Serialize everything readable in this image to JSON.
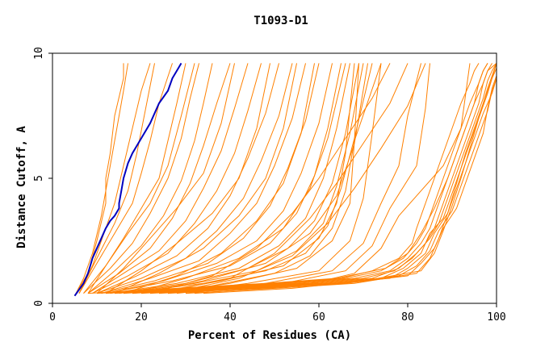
{
  "chart_data": {
    "type": "line",
    "title": "T1093-D1",
    "xlabel": "Percent of Residues (CA)",
    "ylabel": "Distance Cutoff, A",
    "xlim": [
      0,
      100
    ],
    "ylim": [
      0,
      10
    ],
    "xticks": [
      "0",
      "20",
      "40",
      "60",
      "80",
      "100"
    ],
    "yticks": [
      "0",
      "5",
      "10"
    ],
    "grid": false,
    "legend": "none",
    "colors": {
      "models": "#ff8000",
      "highlight": "#0000c0",
      "axes": "#000000"
    },
    "highlight_series": {
      "x": [
        5,
        7,
        8,
        8.5,
        9,
        10,
        11,
        12,
        13,
        14,
        15,
        15,
        15.5,
        16,
        17,
        18,
        20,
        22,
        23,
        24,
        26,
        27,
        28,
        29
      ],
      "y": [
        0.3,
        0.8,
        1.2,
        1.5,
        1.8,
        2.2,
        2.6,
        3.0,
        3.3,
        3.5,
        3.8,
        4.0,
        4.5,
        5.0,
        5.6,
        6.0,
        6.6,
        7.2,
        7.6,
        8.0,
        8.5,
        9.0,
        9.3,
        9.6
      ]
    },
    "series": [
      {
        "x": [
          5,
          8,
          10,
          12,
          12,
          13,
          14,
          16,
          16
        ],
        "y": [
          0.3,
          1.2,
          2.5,
          4.0,
          5.0,
          6.0,
          7.5,
          9.0,
          9.6
        ]
      },
      {
        "x": [
          5,
          7,
          9,
          11,
          12,
          14,
          16,
          17
        ],
        "y": [
          0.3,
          1.0,
          2.0,
          3.5,
          4.5,
          6.5,
          8.5,
          9.6
        ]
      },
      {
        "x": [
          6,
          9,
          12,
          14,
          16,
          18,
          20,
          22
        ],
        "y": [
          0.4,
          1.5,
          3.0,
          4.0,
          5.5,
          7.0,
          8.5,
          9.6
        ]
      },
      {
        "x": [
          6,
          10,
          14,
          18,
          20,
          22,
          24,
          27
        ],
        "y": [
          0.4,
          1.6,
          2.8,
          4.0,
          5.2,
          6.5,
          8.0,
          9.6
        ]
      },
      {
        "x": [
          7,
          12,
          16,
          20,
          24,
          26,
          28,
          30
        ],
        "y": [
          0.4,
          1.5,
          2.6,
          3.8,
          5.0,
          6.5,
          8.0,
          9.6
        ]
      },
      {
        "x": [
          7,
          13,
          18,
          22,
          26,
          29,
          31,
          33
        ],
        "y": [
          0.4,
          1.4,
          2.4,
          3.6,
          5.0,
          6.6,
          8.2,
          9.6
        ]
      },
      {
        "x": [
          8,
          14,
          20,
          25,
          29,
          32,
          34,
          36
        ],
        "y": [
          0.4,
          1.3,
          2.3,
          3.5,
          4.9,
          6.5,
          8.0,
          9.6
        ]
      },
      {
        "x": [
          8,
          15,
          22,
          27,
          31,
          34,
          37,
          40
        ],
        "y": [
          0.4,
          1.2,
          2.2,
          3.4,
          4.8,
          6.3,
          8.0,
          9.6
        ]
      },
      {
        "x": [
          9,
          16,
          24,
          30,
          34,
          38,
          41,
          44
        ],
        "y": [
          0.4,
          1.2,
          2.1,
          3.3,
          4.6,
          6.1,
          7.8,
          9.6
        ]
      },
      {
        "x": [
          9,
          17,
          26,
          32,
          37,
          41,
          44,
          47
        ],
        "y": [
          0.4,
          1.1,
          2.0,
          3.2,
          4.5,
          6.0,
          7.7,
          9.6
        ]
      },
      {
        "x": [
          10,
          19,
          28,
          35,
          40,
          44,
          48,
          51
        ],
        "y": [
          0.4,
          1.1,
          1.9,
          3.0,
          4.3,
          5.8,
          7.6,
          9.6
        ]
      },
      {
        "x": [
          10,
          20,
          30,
          37,
          43,
          47,
          51,
          54
        ],
        "y": [
          0.4,
          1.0,
          1.8,
          2.9,
          4.2,
          5.7,
          7.5,
          9.6
        ]
      },
      {
        "x": [
          11,
          22,
          33,
          40,
          46,
          50,
          54,
          57
        ],
        "y": [
          0.4,
          1.0,
          1.7,
          2.8,
          4.0,
          5.5,
          7.4,
          9.6
        ]
      },
      {
        "x": [
          11,
          23,
          35,
          43,
          49,
          53,
          57,
          60
        ],
        "y": [
          0.4,
          0.9,
          1.6,
          2.6,
          3.9,
          5.4,
          7.3,
          9.6
        ]
      },
      {
        "x": [
          12,
          25,
          37,
          46,
          52,
          56,
          60,
          63
        ],
        "y": [
          0.4,
          0.9,
          1.6,
          2.5,
          3.7,
          5.2,
          7.2,
          9.6
        ]
      },
      {
        "x": [
          12,
          27,
          40,
          49,
          55,
          59,
          62,
          65
        ],
        "y": [
          0.4,
          0.9,
          1.5,
          2.4,
          3.6,
          5.1,
          7.0,
          9.6
        ]
      },
      {
        "x": [
          13,
          28,
          42,
          51,
          57,
          61,
          64,
          67
        ],
        "y": [
          0.4,
          0.8,
          1.4,
          2.3,
          3.4,
          5.0,
          7.0,
          9.6
        ]
      },
      {
        "x": [
          14,
          30,
          44,
          53,
          59,
          63,
          66,
          69
        ],
        "y": [
          0.4,
          0.8,
          1.4,
          2.2,
          3.3,
          4.8,
          6.8,
          9.6
        ]
      },
      {
        "x": [
          15,
          32,
          46,
          55,
          61,
          64,
          67,
          70
        ],
        "y": [
          0.4,
          0.8,
          1.3,
          2.1,
          3.2,
          4.7,
          6.8,
          9.6
        ]
      },
      {
        "x": [
          16,
          34,
          48,
          57,
          62,
          65,
          68,
          72
        ],
        "y": [
          0.4,
          0.8,
          1.3,
          2.0,
          3.1,
          4.6,
          6.6,
          9.6
        ]
      },
      {
        "x": [
          18,
          36,
          50,
          58,
          63,
          66,
          68,
          74
        ],
        "y": [
          0.4,
          0.7,
          1.2,
          1.9,
          3.0,
          4.5,
          6.5,
          9.6
        ]
      },
      {
        "x": [
          6,
          10,
          14,
          17,
          19,
          21,
          23
        ],
        "y": [
          0.4,
          1.8,
          3.2,
          4.5,
          6.0,
          7.8,
          9.6
        ]
      },
      {
        "x": [
          8,
          12,
          17,
          22,
          26,
          29,
          32
        ],
        "y": [
          0.4,
          1.5,
          2.8,
          4.0,
          5.5,
          7.5,
          9.6
        ]
      },
      {
        "x": [
          10,
          16,
          22,
          28,
          34,
          38,
          41
        ],
        "y": [
          0.4,
          1.4,
          2.6,
          3.8,
          5.2,
          7.2,
          9.6
        ]
      },
      {
        "x": [
          12,
          20,
          28,
          36,
          42,
          46,
          49
        ],
        "y": [
          0.4,
          1.3,
          2.4,
          3.6,
          5.0,
          7.0,
          9.6
        ]
      },
      {
        "x": [
          14,
          24,
          34,
          42,
          48,
          52,
          55
        ],
        "y": [
          0.4,
          1.2,
          2.2,
          3.5,
          5.0,
          7.0,
          9.6
        ]
      },
      {
        "x": [
          16,
          28,
          38,
          46,
          52,
          56,
          59
        ],
        "y": [
          0.4,
          1.1,
          2.0,
          3.3,
          4.8,
          6.8,
          9.6
        ]
      },
      {
        "x": [
          18,
          30,
          42,
          52,
          58,
          62,
          66
        ],
        "y": [
          0.4,
          1.0,
          1.8,
          3.0,
          4.6,
          6.6,
          9.6
        ]
      },
      {
        "x": [
          20,
          34,
          48,
          58,
          64,
          68,
          71
        ],
        "y": [
          0.4,
          0.9,
          1.6,
          2.8,
          4.3,
          6.4,
          9.6
        ]
      },
      {
        "x": [
          22,
          38,
          52,
          60,
          64,
          66,
          68
        ],
        "y": [
          0.4,
          0.9,
          1.5,
          2.6,
          4.0,
          6.0,
          9.6
        ]
      },
      {
        "x": [
          24,
          40,
          55,
          63,
          67,
          68,
          69
        ],
        "y": [
          0.4,
          0.8,
          1.4,
          2.5,
          4.0,
          6.5,
          9.6
        ]
      },
      {
        "x": [
          26,
          44,
          60,
          67,
          70,
          72,
          74
        ],
        "y": [
          0.4,
          0.8,
          1.3,
          2.5,
          4.2,
          6.8,
          9.6
        ]
      },
      {
        "x": [
          28,
          48,
          63,
          70,
          74,
          78,
          80,
          83
        ],
        "y": [
          0.4,
          0.8,
          1.3,
          2.4,
          4.0,
          5.5,
          7.5,
          9.6
        ]
      },
      {
        "x": [
          30,
          52,
          66,
          72,
          76,
          82,
          84,
          85
        ],
        "y": [
          0.4,
          0.8,
          1.3,
          2.3,
          3.8,
          5.5,
          7.8,
          9.6
        ]
      },
      {
        "x": [
          32,
          56,
          68,
          74,
          78,
          88,
          92,
          94
        ],
        "y": [
          0.4,
          0.7,
          1.2,
          2.2,
          3.5,
          5.5,
          7.0,
          9.6
        ]
      },
      {
        "x": [
          24,
          40,
          50,
          58,
          64,
          70,
          76,
          80
        ],
        "y": [
          0.4,
          1.0,
          2.0,
          3.4,
          4.8,
          6.4,
          8.0,
          9.6
        ]
      },
      {
        "x": [
          22,
          36,
          46,
          54,
          60,
          66,
          72,
          76
        ],
        "y": [
          0.4,
          1.1,
          2.2,
          3.6,
          5.0,
          6.6,
          8.2,
          9.6
        ]
      },
      {
        "x": [
          26,
          42,
          54,
          62,
          68,
          74,
          80,
          84
        ],
        "y": [
          0.4,
          1.0,
          1.9,
          3.2,
          4.6,
          6.2,
          7.9,
          9.6
        ]
      },
      {
        "x": [
          10,
          30,
          50,
          65,
          72,
          78,
          81,
          82,
          84,
          86,
          88,
          90,
          92,
          94,
          95,
          96
        ],
        "y": [
          0.4,
          0.6,
          0.8,
          1.0,
          1.3,
          1.8,
          2.4,
          3.0,
          4.0,
          5.0,
          6.0,
          7.0,
          8.0,
          8.8,
          9.3,
          9.6
        ]
      },
      {
        "x": [
          12,
          32,
          52,
          66,
          74,
          79,
          82,
          84,
          86,
          88,
          90,
          92,
          94,
          96,
          97,
          98
        ],
        "y": [
          0.4,
          0.6,
          0.8,
          1.0,
          1.3,
          1.8,
          2.4,
          3.0,
          4.0,
          5.0,
          6.0,
          7.0,
          8.0,
          8.8,
          9.3,
          9.6
        ]
      },
      {
        "x": [
          14,
          34,
          54,
          68,
          76,
          80,
          83,
          85,
          87,
          89,
          91,
          93,
          95,
          97,
          98,
          99
        ],
        "y": [
          0.4,
          0.6,
          0.8,
          1.0,
          1.3,
          1.8,
          2.4,
          3.0,
          4.0,
          5.0,
          6.0,
          7.0,
          8.0,
          8.8,
          9.3,
          9.6
        ]
      },
      {
        "x": [
          16,
          36,
          56,
          70,
          77,
          81,
          84,
          86,
          88,
          90,
          92,
          94,
          96,
          97,
          98,
          100
        ],
        "y": [
          0.4,
          0.6,
          0.8,
          1.0,
          1.3,
          1.8,
          2.4,
          3.0,
          4.0,
          5.0,
          6.0,
          7.0,
          8.0,
          8.8,
          9.3,
          9.6
        ]
      },
      {
        "x": [
          18,
          38,
          58,
          72,
          78,
          82,
          85,
          87,
          89,
          91,
          93,
          95,
          97,
          98,
          99,
          100
        ],
        "y": [
          0.4,
          0.6,
          0.8,
          1.0,
          1.4,
          2.0,
          2.6,
          3.2,
          4.2,
          5.2,
          6.2,
          7.2,
          8.2,
          8.9,
          9.3,
          9.6
        ]
      },
      {
        "x": [
          20,
          40,
          60,
          74,
          79,
          83,
          85,
          88,
          90,
          92,
          94,
          96,
          98,
          99,
          100,
          100
        ],
        "y": [
          0.4,
          0.6,
          0.8,
          1.0,
          1.4,
          2.0,
          2.8,
          3.4,
          4.4,
          5.4,
          6.4,
          7.4,
          8.4,
          9.0,
          9.4,
          9.6
        ]
      },
      {
        "x": [
          22,
          42,
          62,
          76,
          80,
          84,
          86,
          89,
          91,
          93,
          95,
          97,
          99,
          100,
          100,
          100
        ],
        "y": [
          0.4,
          0.6,
          0.8,
          1.0,
          1.4,
          2.0,
          2.8,
          3.6,
          4.6,
          5.6,
          6.6,
          7.6,
          8.4,
          9.0,
          9.4,
          9.6
        ]
      },
      {
        "x": [
          24,
          44,
          64,
          78,
          82,
          85,
          87,
          90,
          92,
          94,
          96,
          98,
          99,
          100,
          100,
          100
        ],
        "y": [
          0.4,
          0.6,
          0.8,
          1.1,
          1.5,
          2.1,
          2.9,
          3.7,
          4.7,
          5.7,
          6.7,
          7.7,
          8.5,
          9.0,
          9.4,
          9.6
        ]
      },
      {
        "x": [
          26,
          46,
          66,
          80,
          83,
          86,
          88,
          91,
          93,
          95,
          97,
          98,
          99,
          100,
          100,
          100
        ],
        "y": [
          0.4,
          0.6,
          0.8,
          1.1,
          1.6,
          2.2,
          3.0,
          3.8,
          4.8,
          5.8,
          6.8,
          7.8,
          8.6,
          9.1,
          9.4,
          9.6
        ]
      },
      {
        "x": [
          8,
          28,
          48,
          64,
          75,
          80,
          83,
          86,
          89,
          91,
          93,
          95,
          96,
          97,
          98
        ],
        "y": [
          0.4,
          0.6,
          0.8,
          1.0,
          1.4,
          2.0,
          2.8,
          3.8,
          5.0,
          6.0,
          7.0,
          8.0,
          8.8,
          9.3,
          9.6
        ]
      },
      {
        "x": [
          30,
          50,
          68,
          82,
          85,
          87,
          89,
          91,
          93,
          95,
          97,
          99,
          100
        ],
        "y": [
          0.4,
          0.6,
          0.8,
          1.2,
          1.8,
          2.6,
          3.6,
          4.8,
          6.0,
          7.0,
          8.0,
          9.0,
          9.6
        ]
      },
      {
        "x": [
          34,
          54,
          70,
          83,
          86,
          88,
          90,
          92,
          94,
          96,
          98,
          100
        ],
        "y": [
          0.4,
          0.6,
          0.9,
          1.3,
          2.0,
          2.9,
          3.9,
          5.0,
          6.2,
          7.4,
          8.6,
          9.6
        ]
      }
    ]
  }
}
